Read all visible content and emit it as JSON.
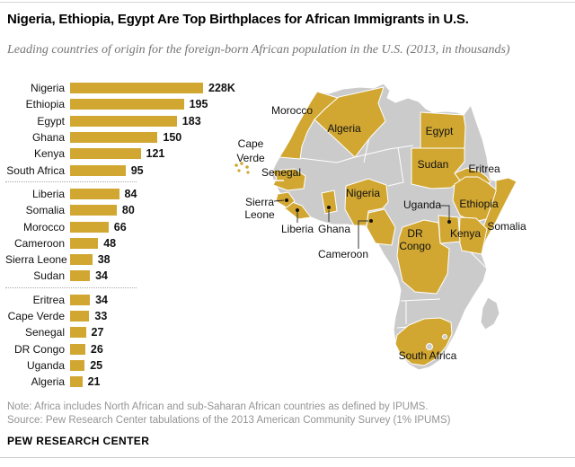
{
  "header": {
    "title": "Nigeria, Ethiopia, Egypt Are Top Birthplaces for African Immigrants in U.S.",
    "subtitle": "Leading countries of origin for the foreign-born African population in the U.S. (2013, in thousands)"
  },
  "chart_data": {
    "type": "bar",
    "orientation": "horizontal",
    "unit": "thousands",
    "categories": [
      "Nigeria",
      "Ethiopia",
      "Egypt",
      "Ghana",
      "Kenya",
      "South Africa",
      "Liberia",
      "Somalia",
      "Morocco",
      "Cameroon",
      "Sierra Leone",
      "Sudan",
      "Eritrea",
      "Cape Verde",
      "Senegal",
      "DR Congo",
      "Uganda",
      "Algeria"
    ],
    "values": [
      228,
      195,
      183,
      150,
      121,
      95,
      84,
      80,
      66,
      48,
      38,
      34,
      34,
      33,
      27,
      26,
      25,
      21
    ],
    "value_labels": [
      "228K",
      "195",
      "183",
      "150",
      "121",
      "95",
      "84",
      "80",
      "66",
      "48",
      "38",
      "34",
      "34",
      "33",
      "27",
      "26",
      "25",
      "21"
    ],
    "group_breaks_after_index": [
      5,
      11
    ],
    "bar_color": "#D1A732",
    "xlim": [
      0,
      228
    ],
    "grid": false,
    "legend": false
  },
  "map": {
    "region": "Africa",
    "highlight_color": "#D1A732",
    "base_color": "#CBCBCB",
    "labels": [
      {
        "name": "Morocco"
      },
      {
        "name": "Algeria"
      },
      {
        "name": "Egypt"
      },
      {
        "name": "Cape Verde",
        "lines": [
          "Cape",
          "Verde"
        ]
      },
      {
        "name": "Senegal"
      },
      {
        "name": "Sudan"
      },
      {
        "name": "Eritrea"
      },
      {
        "name": "Sierra Leone",
        "lines": [
          "Sierra",
          "Leone"
        ]
      },
      {
        "name": "Nigeria"
      },
      {
        "name": "Uganda"
      },
      {
        "name": "Ethiopia"
      },
      {
        "name": "Liberia"
      },
      {
        "name": "Ghana"
      },
      {
        "name": "Somalia"
      },
      {
        "name": "Kenya"
      },
      {
        "name": "DR Congo",
        "lines": [
          "DR",
          "Congo"
        ]
      },
      {
        "name": "Cameroon"
      },
      {
        "name": "South Africa"
      }
    ]
  },
  "footer": {
    "note": "Note: Africa includes North African and sub-Saharan African countries as defined by IPUMS.",
    "source": "Source: Pew Research Center tabulations of the 2013 American Community Survey (1% IPUMS)",
    "brand": "PEW RESEARCH CENTER"
  }
}
